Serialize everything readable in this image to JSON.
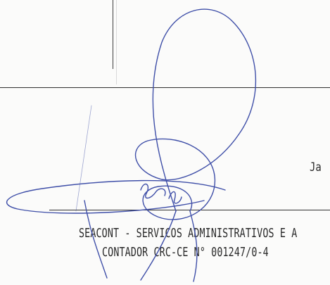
{
  "document": {
    "side_text": "Ja",
    "signature_block": {
      "line1": "SEACONT - SERVICOS ADMINISTRATIVOS E A",
      "line2": "CONTADOR CRC-CE N° 001247/0-4"
    }
  },
  "colors": {
    "ink": "#2a2a2a",
    "signature_ink": "#3f4fa8",
    "paper": "#fbfbfa"
  }
}
